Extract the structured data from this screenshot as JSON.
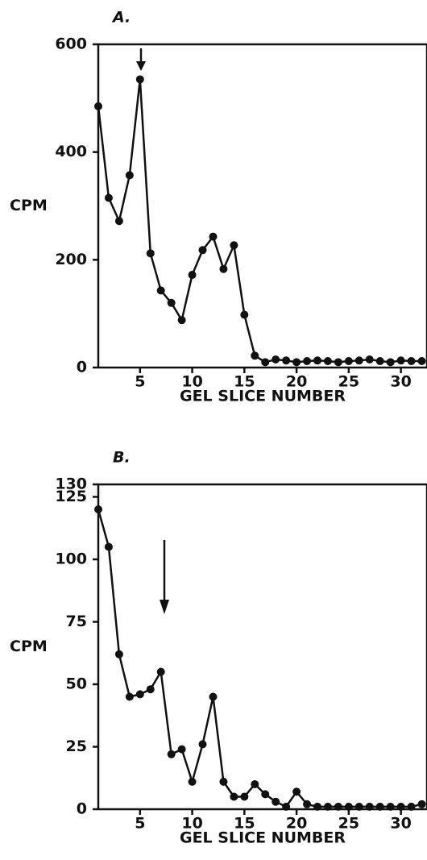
{
  "chart_data": [
    {
      "type": "line",
      "title": "A.",
      "ylabel": "CPM",
      "xlabel": "GEL SLICE NUMBER",
      "color": "#111111",
      "x": [
        1,
        2,
        3,
        4,
        5,
        6,
        7,
        8,
        9,
        10,
        11,
        12,
        13,
        14,
        15,
        16,
        17,
        18,
        19,
        20,
        21,
        22,
        23,
        24,
        25,
        26,
        27,
        28,
        29,
        30,
        31,
        32
      ],
      "values": [
        485,
        315,
        272,
        357,
        535,
        212,
        143,
        120,
        88,
        172,
        218,
        243,
        183,
        227,
        98,
        22,
        10,
        15,
        13,
        10,
        12,
        13,
        12,
        10,
        12,
        13,
        15,
        12,
        10,
        13,
        12,
        12
      ],
      "xlim": [
        1,
        32.5
      ],
      "ylim": [
        0,
        600
      ],
      "xticks": [
        5,
        10,
        15,
        20,
        25,
        30
      ],
      "yticks": [
        0,
        200,
        400,
        600
      ]
    },
    {
      "type": "line",
      "title": "B.",
      "ylabel": "CPM",
      "xlabel": "GEL SLICE NUMBER",
      "color": "#111111",
      "x": [
        1,
        2,
        3,
        4,
        5,
        6,
        7,
        8,
        9,
        10,
        11,
        12,
        13,
        14,
        15,
        16,
        17,
        18,
        19,
        20,
        21,
        22,
        23,
        24,
        25,
        26,
        27,
        28,
        29,
        30,
        31,
        32
      ],
      "values": [
        120,
        105,
        62,
        45,
        46,
        48,
        55,
        22,
        24,
        11,
        26,
        45,
        11,
        5,
        5,
        10,
        6,
        3,
        1,
        7,
        2,
        1,
        1,
        1,
        1,
        1,
        1,
        1,
        1,
        1,
        1,
        2
      ],
      "xlim": [
        1,
        32.5
      ],
      "ylim": [
        0,
        130
      ],
      "xticks": [
        5,
        10,
        15,
        20,
        25,
        30
      ],
      "yticks": [
        0,
        25,
        50,
        75,
        100,
        125,
        130
      ]
    }
  ]
}
